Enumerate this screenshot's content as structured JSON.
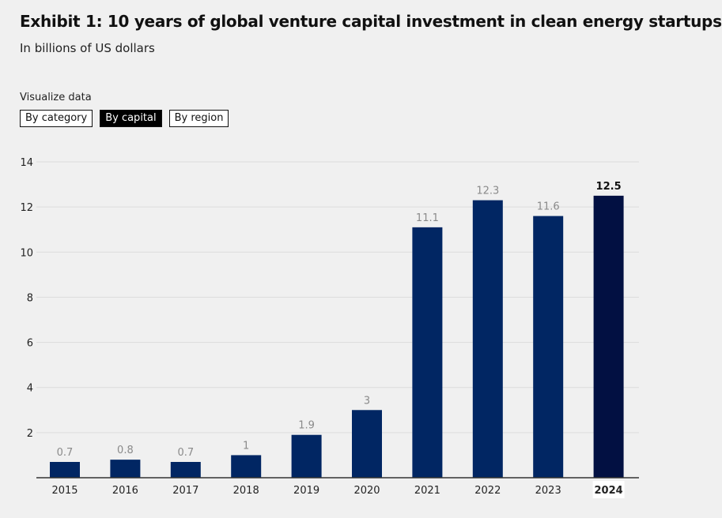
{
  "header": {
    "title": "Exhibit 1: 10 years of global venture capital investment in clean energy startups",
    "subtitle": "In billions of US dollars"
  },
  "controls": {
    "label": "Visualize data",
    "options": [
      {
        "label": "By category",
        "active": false
      },
      {
        "label": "By capital",
        "active": true
      },
      {
        "label": "By region",
        "active": false
      }
    ]
  },
  "colors": {
    "bar": "#012663",
    "bar_highlight": "#021042",
    "grid": "#dcdcdc",
    "axis": "#333333",
    "value_label": "#8a8a8a"
  },
  "chart_data": {
    "type": "bar",
    "categories": [
      "2015",
      "2016",
      "2017",
      "2018",
      "2019",
      "2020",
      "2021",
      "2022",
      "2023",
      "2024"
    ],
    "values": [
      0.7,
      0.8,
      0.7,
      1,
      1.9,
      3,
      11.1,
      12.3,
      11.6,
      12.5
    ],
    "value_labels": [
      "0.7",
      "0.8",
      "0.7",
      "1",
      "1.9",
      "3",
      "11.1",
      "12.3",
      "11.6",
      "12.5"
    ],
    "highlight_category": "2024",
    "ylim": [
      0,
      14
    ],
    "yticks": [
      "2",
      "4",
      "6",
      "8",
      "10",
      "12",
      "14"
    ],
    "grid": true,
    "legend": "none"
  }
}
